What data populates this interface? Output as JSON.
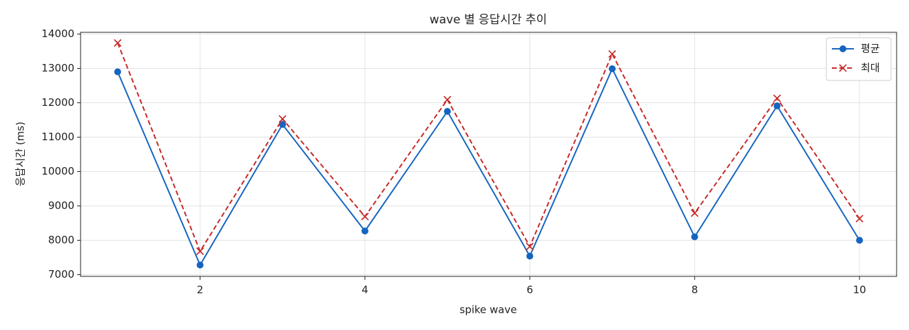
{
  "chart_data": {
    "type": "line",
    "title": "wave 별 응답시간 추이",
    "x_label": "spike wave",
    "y_label": "응답시간 (ms)",
    "x": [
      1,
      2,
      3,
      4,
      5,
      6,
      7,
      8,
      9,
      10
    ],
    "series": [
      {
        "name": "평균",
        "color": "#1565c0",
        "marker": "circle",
        "dash": "solid",
        "values": [
          12900,
          7280,
          11370,
          8270,
          11750,
          7540,
          12990,
          8100,
          11910,
          8000
        ]
      },
      {
        "name": "최대",
        "color": "#c62828",
        "marker": "x",
        "dash": "dashed",
        "values": [
          13740,
          7680,
          11530,
          8690,
          12090,
          7820,
          13420,
          8790,
          12130,
          8630
        ]
      }
    ],
    "xlim": [
      0.55,
      10.45
    ],
    "ylim": [
      6950,
      14050
    ],
    "xticks": [
      2,
      4,
      6,
      8,
      10
    ],
    "yticks": [
      7000,
      8000,
      9000,
      10000,
      11000,
      12000,
      13000,
      14000
    ],
    "grid": true,
    "legend": "upper-right"
  }
}
